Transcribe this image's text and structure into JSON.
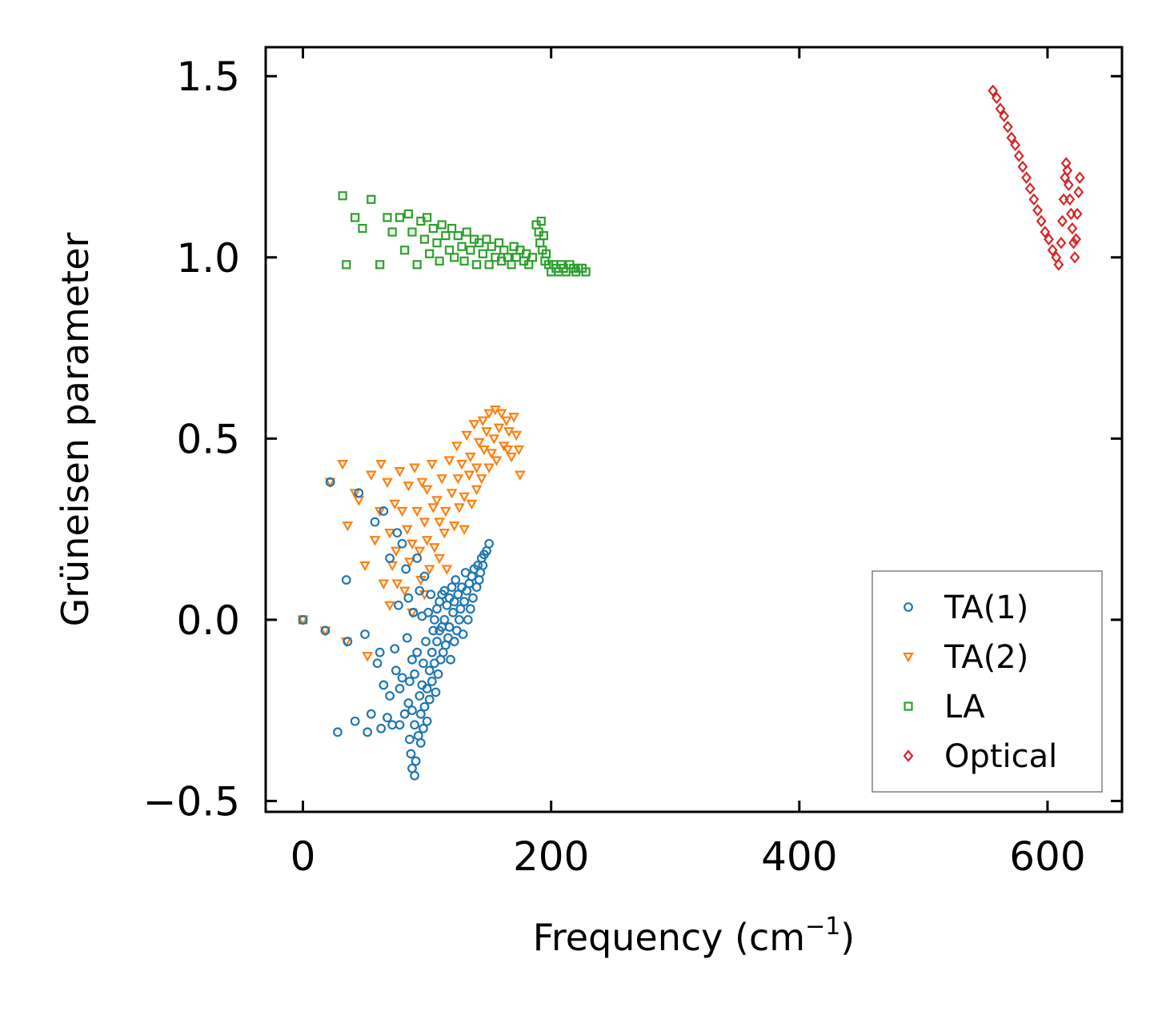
{
  "chart_data": {
    "type": "scatter",
    "xlabel_main": "Frequency (cm",
    "xlabel_sup": "−1",
    "xlabel_end": ")",
    "ylabel": "Grüneisen parameter",
    "xlim": [
      -30,
      660
    ],
    "ylim": [
      -0.53,
      1.58
    ],
    "xticks": [
      0,
      200,
      400,
      600
    ],
    "xtick_labels": [
      "0",
      "200",
      "400",
      "600"
    ],
    "yticks": [
      -0.5,
      0.0,
      0.5,
      1.0,
      1.5
    ],
    "ytick_labels": [
      "−0.5",
      "0.0",
      "0.5",
      "1.0",
      "1.5"
    ],
    "legend_position": "lower-right",
    "series": [
      {
        "name": "TA(1)",
        "marker": "circle",
        "color": "#1f77b4",
        "x": [
          0,
          18,
          22,
          28,
          35,
          36,
          42,
          45,
          50,
          52,
          55,
          58,
          60,
          62,
          63,
          65,
          65,
          68,
          70,
          70,
          72,
          74,
          75,
          76,
          77,
          78,
          78,
          80,
          80,
          82,
          83,
          84,
          85,
          85,
          86,
          86,
          87,
          88,
          88,
          88,
          89,
          90,
          90,
          90,
          91,
          92,
          92,
          93,
          94,
          94,
          95,
          95,
          96,
          96,
          97,
          97,
          98,
          98,
          99,
          100,
          100,
          101,
          102,
          102,
          103,
          104,
          104,
          105,
          106,
          106,
          107,
          108,
          108,
          109,
          110,
          110,
          111,
          112,
          112,
          113,
          114,
          114,
          115,
          116,
          117,
          118,
          118,
          119,
          120,
          121,
          122,
          122,
          123,
          124,
          125,
          126,
          127,
          128,
          129,
          130,
          131,
          132,
          133,
          134,
          135,
          136,
          137,
          138,
          140,
          141,
          142,
          143,
          144,
          145,
          146,
          148,
          150
        ],
        "y": [
          0.0,
          -0.03,
          0.38,
          -0.31,
          0.11,
          -0.06,
          -0.28,
          0.35,
          -0.04,
          -0.31,
          -0.26,
          0.27,
          -0.12,
          -0.09,
          -0.3,
          0.3,
          -0.18,
          -0.27,
          0.17,
          -0.21,
          -0.29,
          -0.08,
          -0.14,
          0.24,
          0.04,
          -0.19,
          -0.29,
          0.21,
          -0.16,
          -0.26,
          0.14,
          -0.05,
          0.06,
          -0.23,
          -0.33,
          -0.17,
          -0.37,
          -0.11,
          -0.25,
          -0.41,
          0.02,
          -0.43,
          -0.29,
          -0.15,
          -0.39,
          0.17,
          -0.09,
          -0.32,
          0.08,
          -0.21,
          -0.34,
          -0.26,
          0.01,
          -0.18,
          -0.12,
          -0.3,
          0.12,
          -0.24,
          -0.06,
          -0.19,
          -0.28,
          0.02,
          -0.14,
          -0.22,
          0.07,
          -0.09,
          -0.17,
          -0.03,
          0.0,
          -0.12,
          -0.2,
          0.03,
          -0.06,
          -0.15,
          0.05,
          -0.03,
          -0.11,
          0.07,
          -0.02,
          -0.09,
          0.08,
          0.0,
          -0.07,
          0.04,
          -0.05,
          0.06,
          -0.02,
          -0.11,
          0.09,
          0.02,
          -0.06,
          0.05,
          0.11,
          -0.03,
          0.07,
          0.0,
          0.03,
          0.09,
          -0.04,
          0.05,
          0.13,
          0.08,
          0.0,
          0.1,
          0.03,
          0.12,
          0.06,
          0.14,
          0.09,
          0.15,
          0.11,
          0.13,
          0.17,
          0.15,
          0.18,
          0.19,
          0.21
        ]
      },
      {
        "name": "TA(2)",
        "marker": "triangle-down",
        "color": "#ff7f0e",
        "x": [
          0,
          18,
          22,
          32,
          35,
          36,
          42,
          45,
          50,
          52,
          55,
          58,
          62,
          63,
          65,
          68,
          70,
          70,
          72,
          74,
          75,
          76,
          78,
          80,
          82,
          84,
          85,
          86,
          88,
          88,
          90,
          92,
          94,
          95,
          96,
          98,
          98,
          100,
          100,
          102,
          104,
          105,
          106,
          108,
          110,
          110,
          112,
          114,
          115,
          116,
          118,
          120,
          122,
          124,
          125,
          126,
          128,
          130,
          130,
          132,
          134,
          135,
          136,
          138,
          140,
          140,
          142,
          144,
          145,
          146,
          148,
          150,
          150,
          152,
          154,
          155,
          156,
          158,
          160,
          162,
          164,
          165,
          166,
          168,
          170,
          172,
          174,
          175
        ],
        "y": [
          0.0,
          -0.03,
          0.38,
          0.43,
          -0.06,
          0.26,
          0.35,
          0.33,
          0.15,
          -0.1,
          0.4,
          0.22,
          0.3,
          0.43,
          0.1,
          0.38,
          0.04,
          0.24,
          0.15,
          0.32,
          0.19,
          0.1,
          0.41,
          0.3,
          0.08,
          0.25,
          0.37,
          0.16,
          0.21,
          0.02,
          0.42,
          0.3,
          0.19,
          0.11,
          0.38,
          0.27,
          0.07,
          0.36,
          0.22,
          0.14,
          0.43,
          0.31,
          0.2,
          0.33,
          0.27,
          0.17,
          0.39,
          0.24,
          0.3,
          0.14,
          0.44,
          0.35,
          0.26,
          0.48,
          0.39,
          0.31,
          0.43,
          0.34,
          0.25,
          0.51,
          0.4,
          0.45,
          0.32,
          0.54,
          0.42,
          0.36,
          0.49,
          0.39,
          0.55,
          0.47,
          0.52,
          0.42,
          0.57,
          0.46,
          0.5,
          0.58,
          0.44,
          0.53,
          0.57,
          0.48,
          0.55,
          0.47,
          0.52,
          0.45,
          0.56,
          0.51,
          0.47,
          0.4
        ]
      },
      {
        "name": "LA",
        "marker": "square",
        "color": "#2ca02c",
        "x": [
          0,
          32,
          35,
          42,
          48,
          55,
          62,
          68,
          72,
          78,
          82,
          85,
          88,
          92,
          95,
          98,
          100,
          102,
          105,
          108,
          110,
          112,
          115,
          118,
          120,
          122,
          125,
          128,
          130,
          132,
          135,
          138,
          140,
          142,
          145,
          148,
          150,
          152,
          155,
          158,
          160,
          162,
          165,
          168,
          170,
          172,
          175,
          178,
          180,
          182,
          185,
          188,
          190,
          191,
          192,
          193,
          194,
          195,
          196,
          198,
          200,
          202,
          204,
          206,
          208,
          210,
          212,
          215,
          218,
          220,
          222,
          225,
          228
        ],
        "y": [
          0.0,
          1.17,
          0.98,
          1.11,
          1.08,
          1.16,
          0.98,
          1.11,
          1.07,
          1.11,
          1.02,
          1.12,
          1.07,
          0.98,
          1.1,
          1.05,
          1.11,
          1.01,
          1.08,
          1.04,
          0.99,
          1.09,
          1.06,
          1.02,
          1.08,
          1.0,
          1.06,
          1.03,
          0.99,
          1.07,
          1.02,
          1.05,
          0.98,
          1.04,
          1.01,
          1.05,
          0.98,
          1.03,
          1.0,
          1.04,
          0.99,
          1.02,
          1.0,
          0.98,
          1.03,
          1.0,
          1.02,
          0.99,
          1.01,
          0.98,
          1.0,
          1.09,
          1.07,
          1.04,
          1.1,
          1.02,
          1.06,
          0.99,
          1.01,
          0.98,
          0.96,
          0.98,
          0.97,
          0.96,
          0.98,
          0.97,
          0.96,
          0.98,
          0.97,
          0.96,
          0.97,
          0.97,
          0.96
        ]
      },
      {
        "name": "Optical",
        "marker": "diamond",
        "color": "#d62728",
        "x": [
          556,
          559,
          562,
          565,
          568,
          571,
          574,
          577,
          580,
          583,
          586,
          589,
          592,
          595,
          598,
          601,
          604,
          607,
          609,
          611,
          612,
          613,
          614,
          615,
          616,
          617,
          618,
          619,
          620,
          621,
          622,
          623,
          624,
          625,
          626
        ],
        "y": [
          1.46,
          1.44,
          1.41,
          1.39,
          1.36,
          1.33,
          1.31,
          1.28,
          1.25,
          1.22,
          1.19,
          1.16,
          1.13,
          1.1,
          1.07,
          1.05,
          1.02,
          1.0,
          0.98,
          1.04,
          1.1,
          1.16,
          1.22,
          1.26,
          1.24,
          1.2,
          1.16,
          1.12,
          1.08,
          1.04,
          1.0,
          1.05,
          1.12,
          1.18,
          1.22
        ]
      }
    ]
  }
}
